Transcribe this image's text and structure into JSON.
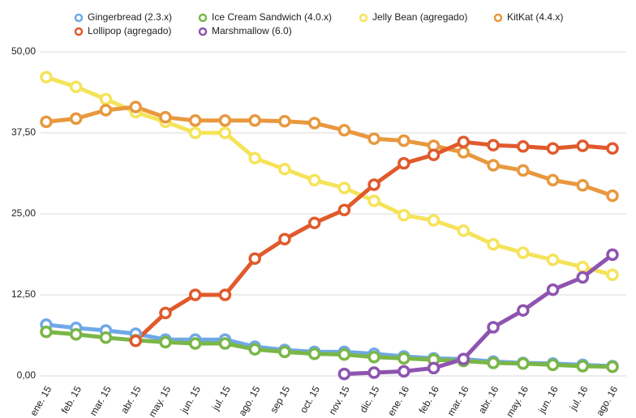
{
  "chart_data": {
    "type": "line",
    "categories": [
      "ene. 15",
      "feb. 15",
      "mar. 15",
      "abr. 15",
      "may. 15",
      "jun. 15",
      "jul. 15",
      "ago. 15",
      "sep 15",
      "oct. 15",
      "nov. 15",
      "dic. 15",
      "ene. 16",
      "feb. 16",
      "mar. 16",
      "abr. 16",
      "may. 16",
      "jun. 16",
      "jul. 16",
      "ago. 16"
    ],
    "series": [
      {
        "name": "Gingerbread (2.3.x)",
        "color": "#6fa8e8",
        "values": [
          7.9,
          7.4,
          7.0,
          6.5,
          5.6,
          5.6,
          5.6,
          4.5,
          4.0,
          3.7,
          3.7,
          3.4,
          3.0,
          2.7,
          2.6,
          2.2,
          2.0,
          1.9,
          1.7,
          1.5
        ]
      },
      {
        "name": "Ice Cream Sandwich (4.0.x)",
        "color": "#7ab648",
        "values": [
          6.8,
          6.4,
          5.9,
          5.5,
          5.2,
          5.0,
          5.0,
          4.1,
          3.7,
          3.4,
          3.3,
          2.9,
          2.7,
          2.5,
          2.3,
          2.0,
          1.9,
          1.7,
          1.5,
          1.4
        ]
      },
      {
        "name": "Jelly Bean (agregado)",
        "color": "#f5e35a",
        "values": [
          46.1,
          44.6,
          42.7,
          40.7,
          39.2,
          37.5,
          37.5,
          33.6,
          31.9,
          30.2,
          29.0,
          27.0,
          24.8,
          24.0,
          22.4,
          20.3,
          19.0,
          17.9,
          16.8,
          15.6
        ]
      },
      {
        "name": "KitKat (4.4.x)",
        "color": "#e8983e",
        "values": [
          39.2,
          39.7,
          41.0,
          41.5,
          39.9,
          39.4,
          39.4,
          39.4,
          39.3,
          39.0,
          37.9,
          36.6,
          36.3,
          35.5,
          34.5,
          32.5,
          31.7,
          30.2,
          29.4,
          27.8
        ]
      },
      {
        "name": "Lollipop (agregado)",
        "color": "#e05a2b",
        "values": [
          null,
          null,
          null,
          5.4,
          9.7,
          12.5,
          12.5,
          18.1,
          21.1,
          23.6,
          25.6,
          29.5,
          32.8,
          34.1,
          36.1,
          35.6,
          35.4,
          35.1,
          35.5,
          35.1
        ]
      },
      {
        "name": "Marshmallow (6.0)",
        "color": "#8e54b0",
        "values": [
          null,
          null,
          null,
          null,
          null,
          null,
          null,
          null,
          null,
          null,
          0.3,
          0.5,
          0.7,
          1.2,
          2.6,
          7.5,
          10.1,
          13.3,
          15.2,
          18.7
        ]
      }
    ],
    "ylim": [
      0,
      50
    ],
    "yticks": [
      {
        "value": 0,
        "label": "0,00"
      },
      {
        "value": 12.5,
        "label": "12,50"
      },
      {
        "value": 25,
        "label": "25,00"
      },
      {
        "value": 37.5,
        "label": "37,50"
      },
      {
        "value": 50,
        "label": "50,00"
      }
    ],
    "grid": true,
    "legend": "top"
  }
}
